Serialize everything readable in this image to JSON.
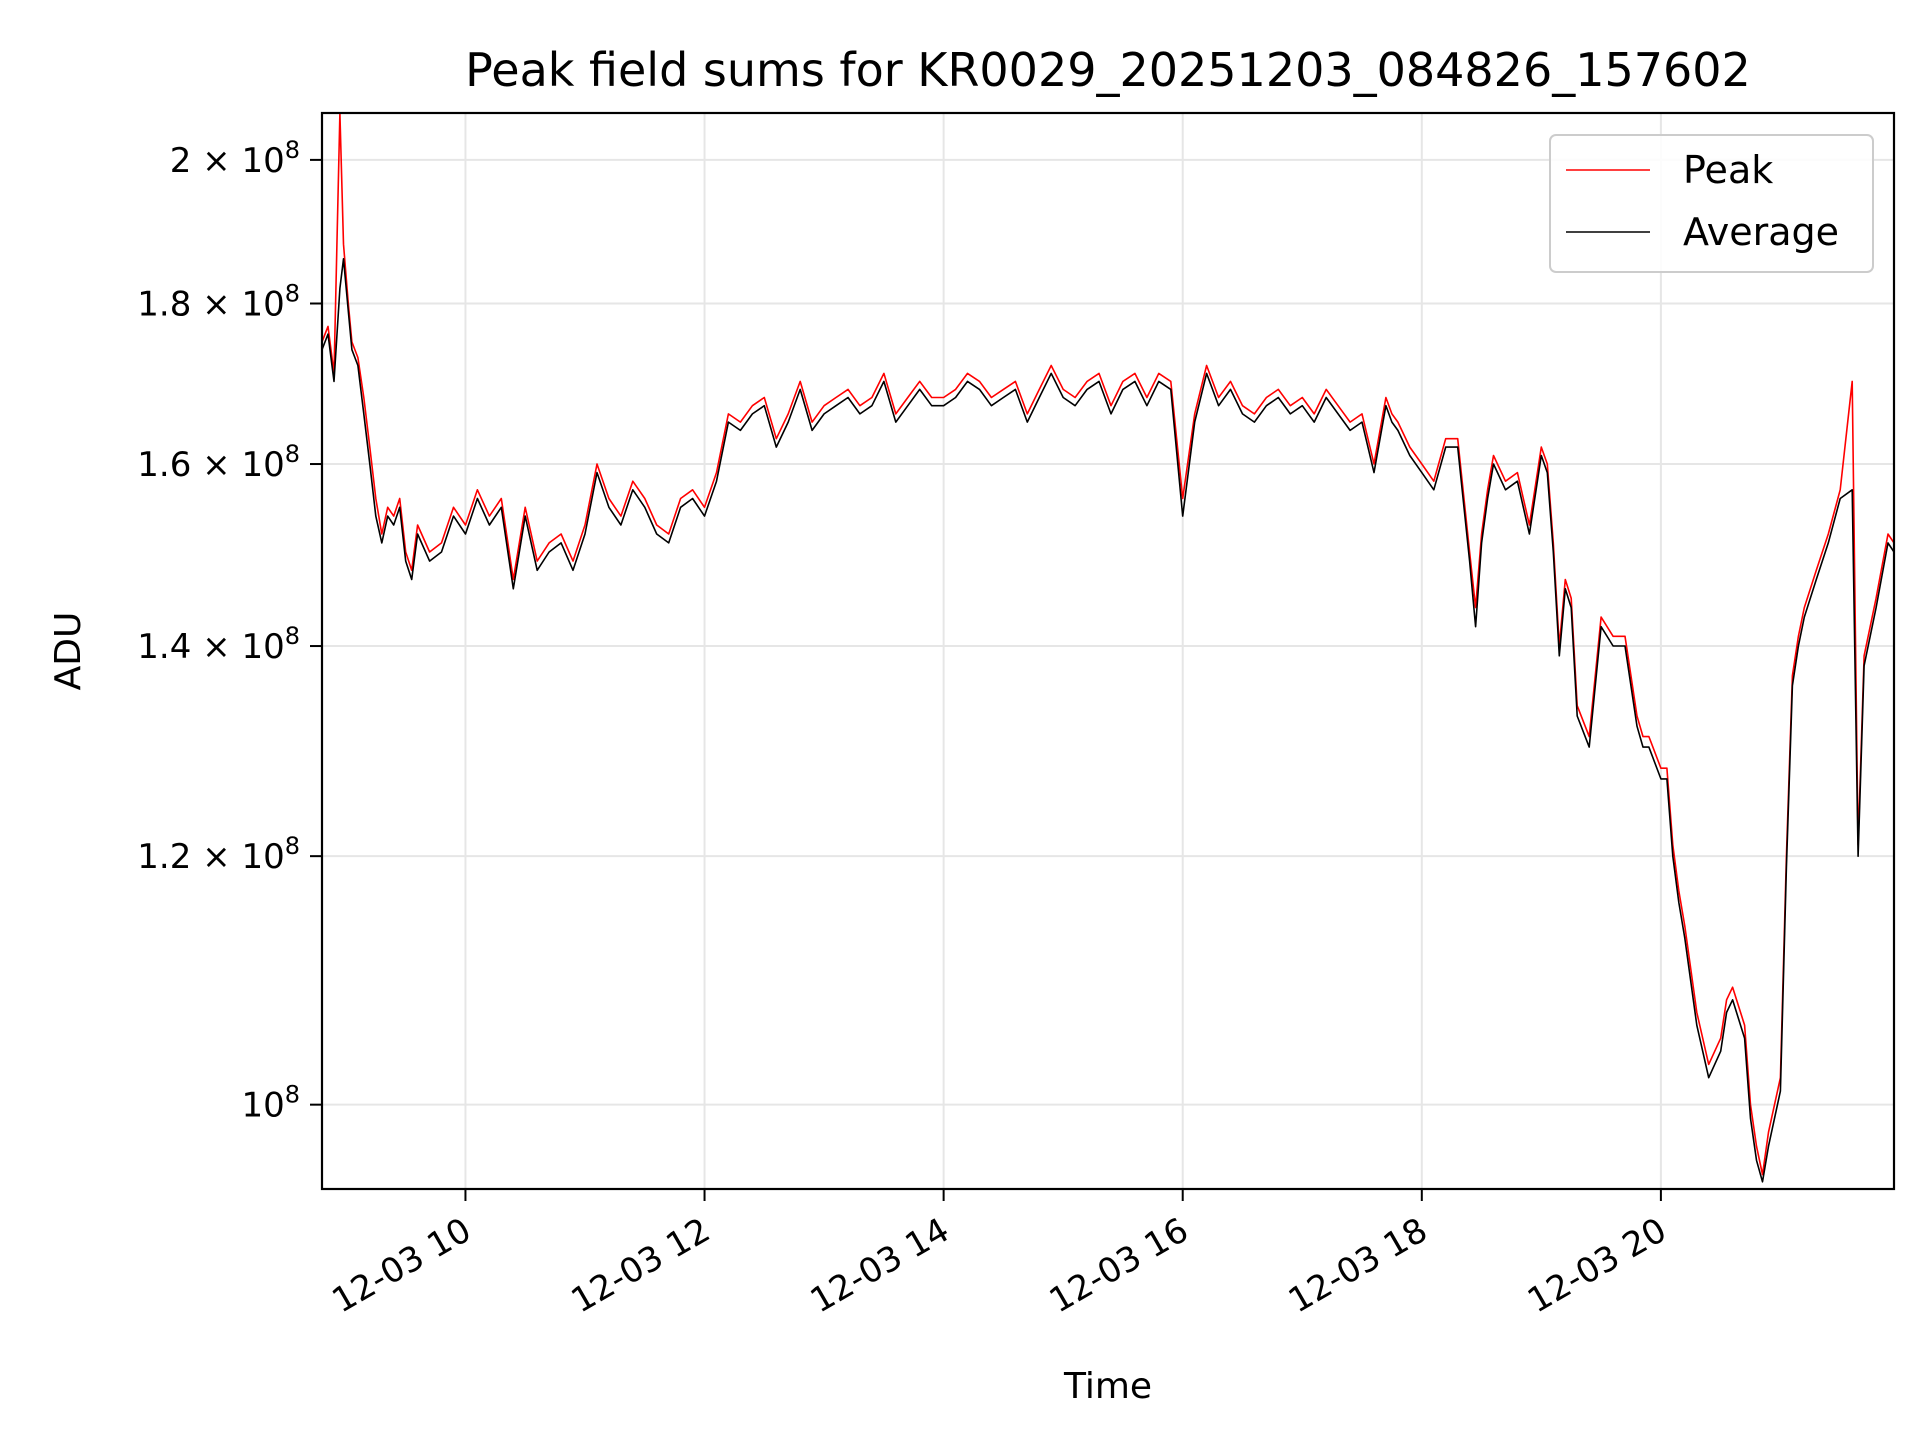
{
  "chart_data": {
    "type": "line",
    "title": "Peak field sums for KR0029_20251203_084826_157602",
    "xlabel": "Time",
    "ylabel": "ADU",
    "yscale": "log",
    "xlim": [
      8.8,
      21.95
    ],
    "ylim": [
      94000000,
      207000000
    ],
    "grid": true,
    "legend_position": "upper right",
    "x_ticks": [
      {
        "value": 10,
        "label": "12-03 10"
      },
      {
        "value": 12,
        "label": "12-03 12"
      },
      {
        "value": 14,
        "label": "12-03 14"
      },
      {
        "value": 16,
        "label": "12-03 16"
      },
      {
        "value": 18,
        "label": "12-03 18"
      },
      {
        "value": 20,
        "label": "12-03 20"
      }
    ],
    "y_ticks": [
      {
        "value": 100000000,
        "mantissa": "",
        "exp": "8"
      },
      {
        "value": 120000000,
        "mantissa": "1.2",
        "exp": "8"
      },
      {
        "value": 140000000,
        "mantissa": "1.4",
        "exp": "8"
      },
      {
        "value": 160000000,
        "mantissa": "1.6",
        "exp": "8"
      },
      {
        "value": 180000000,
        "mantissa": "1.8",
        "exp": "8"
      },
      {
        "value": 200000000,
        "mantissa": "2",
        "exp": "8"
      }
    ],
    "y_tick_base": "10",
    "y_tick_times": "×",
    "series": [
      {
        "name": "Peak",
        "color": "#ff0000",
        "x": [
          8.8,
          8.85,
          8.9,
          8.95,
          8.98,
          9.02,
          9.05,
          9.1,
          9.15,
          9.2,
          9.25,
          9.3,
          9.35,
          9.4,
          9.45,
          9.5,
          9.55,
          9.6,
          9.7,
          9.8,
          9.9,
          10.0,
          10.1,
          10.2,
          10.3,
          10.4,
          10.5,
          10.6,
          10.7,
          10.8,
          10.9,
          11.0,
          11.1,
          11.2,
          11.3,
          11.4,
          11.5,
          11.6,
          11.7,
          11.8,
          11.9,
          12.0,
          12.1,
          12.2,
          12.3,
          12.4,
          12.5,
          12.6,
          12.7,
          12.8,
          12.9,
          13.0,
          13.1,
          13.2,
          13.3,
          13.4,
          13.5,
          13.6,
          13.7,
          13.8,
          13.9,
          14.0,
          14.1,
          14.2,
          14.3,
          14.4,
          14.5,
          14.6,
          14.7,
          14.8,
          14.9,
          15.0,
          15.1,
          15.2,
          15.3,
          15.4,
          15.5,
          15.6,
          15.7,
          15.8,
          15.9,
          16.0,
          16.1,
          16.2,
          16.3,
          16.4,
          16.5,
          16.6,
          16.7,
          16.8,
          16.9,
          17.0,
          17.1,
          17.2,
          17.3,
          17.4,
          17.5,
          17.6,
          17.7,
          17.75,
          17.8,
          17.9,
          18.0,
          18.1,
          18.2,
          18.3,
          18.4,
          18.45,
          18.5,
          18.55,
          18.6,
          18.7,
          18.8,
          18.9,
          19.0,
          19.05,
          19.1,
          19.15,
          19.2,
          19.25,
          19.3,
          19.4,
          19.5,
          19.6,
          19.7,
          19.8,
          19.85,
          19.9,
          20.0,
          20.05,
          20.1,
          20.15,
          20.2,
          20.3,
          20.4,
          20.5,
          20.55,
          20.6,
          20.7,
          20.75,
          20.8,
          20.85,
          20.9,
          21.0,
          21.05,
          21.1,
          21.15,
          21.2,
          21.3,
          21.4,
          21.5,
          21.6,
          21.65,
          21.7,
          21.8,
          21.9,
          21.95
        ],
        "values": [
          175000000,
          177000000,
          171000000,
          207000000,
          188000000,
          180000000,
          175000000,
          173000000,
          168000000,
          162000000,
          156000000,
          152000000,
          155000000,
          154000000,
          156000000,
          150000000,
          148000000,
          153000000,
          150000000,
          151000000,
          155000000,
          153000000,
          157000000,
          154000000,
          156000000,
          147000000,
          155000000,
          149000000,
          151000000,
          152000000,
          149000000,
          153000000,
          160000000,
          156000000,
          154000000,
          158000000,
          156000000,
          153000000,
          152000000,
          156000000,
          157000000,
          155000000,
          159000000,
          166000000,
          165000000,
          167000000,
          168000000,
          163000000,
          166000000,
          170000000,
          165000000,
          167000000,
          168000000,
          169000000,
          167000000,
          168000000,
          171000000,
          166000000,
          168000000,
          170000000,
          168000000,
          168000000,
          169000000,
          171000000,
          170000000,
          168000000,
          169000000,
          170000000,
          166000000,
          169000000,
          172000000,
          169000000,
          168000000,
          170000000,
          171000000,
          167000000,
          170000000,
          171000000,
          168000000,
          171000000,
          170000000,
          156000000,
          166000000,
          172000000,
          168000000,
          170000000,
          167000000,
          166000000,
          168000000,
          169000000,
          167000000,
          168000000,
          166000000,
          169000000,
          167000000,
          165000000,
          166000000,
          160000000,
          168000000,
          166000000,
          165000000,
          162000000,
          160000000,
          158000000,
          163000000,
          163000000,
          150000000,
          144000000,
          152000000,
          157000000,
          161000000,
          158000000,
          159000000,
          153000000,
          162000000,
          160000000,
          151000000,
          140000000,
          147000000,
          145000000,
          134000000,
          131000000,
          143000000,
          141000000,
          141000000,
          133000000,
          131000000,
          131000000,
          128000000,
          128000000,
          121000000,
          117000000,
          114000000,
          107000000,
          103000000,
          105000000,
          108000000,
          109000000,
          106000000,
          100000000,
          97000000,
          95000000,
          98000000,
          102000000,
          120000000,
          137000000,
          141000000,
          144000000,
          148000000,
          152000000,
          157000000,
          170000000,
          121000000,
          139000000,
          145000000,
          152000000,
          151000000
        ]
      },
      {
        "name": "Average",
        "color": "#000000",
        "x": [
          8.8,
          8.85,
          8.9,
          8.95,
          8.98,
          9.02,
          9.05,
          9.1,
          9.15,
          9.2,
          9.25,
          9.3,
          9.35,
          9.4,
          9.45,
          9.5,
          9.55,
          9.6,
          9.7,
          9.8,
          9.9,
          10.0,
          10.1,
          10.2,
          10.3,
          10.4,
          10.5,
          10.6,
          10.7,
          10.8,
          10.9,
          11.0,
          11.1,
          11.2,
          11.3,
          11.4,
          11.5,
          11.6,
          11.7,
          11.8,
          11.9,
          12.0,
          12.1,
          12.2,
          12.3,
          12.4,
          12.5,
          12.6,
          12.7,
          12.8,
          12.9,
          13.0,
          13.1,
          13.2,
          13.3,
          13.4,
          13.5,
          13.6,
          13.7,
          13.8,
          13.9,
          14.0,
          14.1,
          14.2,
          14.3,
          14.4,
          14.5,
          14.6,
          14.7,
          14.8,
          14.9,
          15.0,
          15.1,
          15.2,
          15.3,
          15.4,
          15.5,
          15.6,
          15.7,
          15.8,
          15.9,
          16.0,
          16.1,
          16.2,
          16.3,
          16.4,
          16.5,
          16.6,
          16.7,
          16.8,
          16.9,
          17.0,
          17.1,
          17.2,
          17.3,
          17.4,
          17.5,
          17.6,
          17.7,
          17.75,
          17.8,
          17.9,
          18.0,
          18.1,
          18.2,
          18.3,
          18.4,
          18.45,
          18.5,
          18.55,
          18.6,
          18.7,
          18.8,
          18.9,
          19.0,
          19.05,
          19.1,
          19.15,
          19.2,
          19.25,
          19.3,
          19.4,
          19.5,
          19.6,
          19.7,
          19.8,
          19.85,
          19.9,
          20.0,
          20.05,
          20.1,
          20.15,
          20.2,
          20.3,
          20.4,
          20.5,
          20.55,
          20.6,
          20.7,
          20.75,
          20.8,
          20.85,
          20.9,
          21.0,
          21.05,
          21.1,
          21.15,
          21.2,
          21.3,
          21.4,
          21.5,
          21.6,
          21.65,
          21.7,
          21.8,
          21.9,
          21.95
        ],
        "values": [
          174000000,
          176000000,
          170000000,
          182000000,
          186000000,
          179000000,
          174000000,
          172000000,
          166000000,
          160000000,
          154000000,
          151000000,
          154000000,
          153000000,
          155000000,
          149000000,
          147000000,
          152000000,
          149000000,
          150000000,
          154000000,
          152000000,
          156000000,
          153000000,
          155000000,
          146000000,
          154000000,
          148000000,
          150000000,
          151000000,
          148000000,
          152000000,
          159000000,
          155000000,
          153000000,
          157000000,
          155000000,
          152000000,
          151000000,
          155000000,
          156000000,
          154000000,
          158000000,
          165000000,
          164000000,
          166000000,
          167000000,
          162000000,
          165000000,
          169000000,
          164000000,
          166000000,
          167000000,
          168000000,
          166000000,
          167000000,
          170000000,
          165000000,
          167000000,
          169000000,
          167000000,
          167000000,
          168000000,
          170000000,
          169000000,
          167000000,
          168000000,
          169000000,
          165000000,
          168000000,
          171000000,
          168000000,
          167000000,
          169000000,
          170000000,
          166000000,
          169000000,
          170000000,
          167000000,
          170000000,
          169000000,
          154000000,
          165000000,
          171000000,
          167000000,
          169000000,
          166000000,
          165000000,
          167000000,
          168000000,
          166000000,
          167000000,
          165000000,
          168000000,
          166000000,
          164000000,
          165000000,
          159000000,
          167000000,
          165000000,
          164000000,
          161000000,
          159000000,
          157000000,
          162000000,
          162000000,
          149000000,
          142000000,
          151000000,
          156000000,
          160000000,
          157000000,
          158000000,
          152000000,
          161000000,
          159000000,
          150000000,
          139000000,
          146000000,
          144000000,
          133000000,
          130000000,
          142000000,
          140000000,
          140000000,
          132000000,
          130000000,
          130000000,
          127000000,
          127000000,
          120000000,
          116000000,
          113000000,
          106000000,
          102000000,
          104000000,
          107000000,
          108000000,
          105000000,
          99000000,
          96000000,
          94500000,
          97000000,
          101000000,
          119000000,
          136000000,
          140000000,
          143000000,
          147000000,
          151000000,
          156000000,
          157000000,
          120000000,
          138000000,
          144000000,
          151000000,
          150000000
        ]
      }
    ]
  }
}
